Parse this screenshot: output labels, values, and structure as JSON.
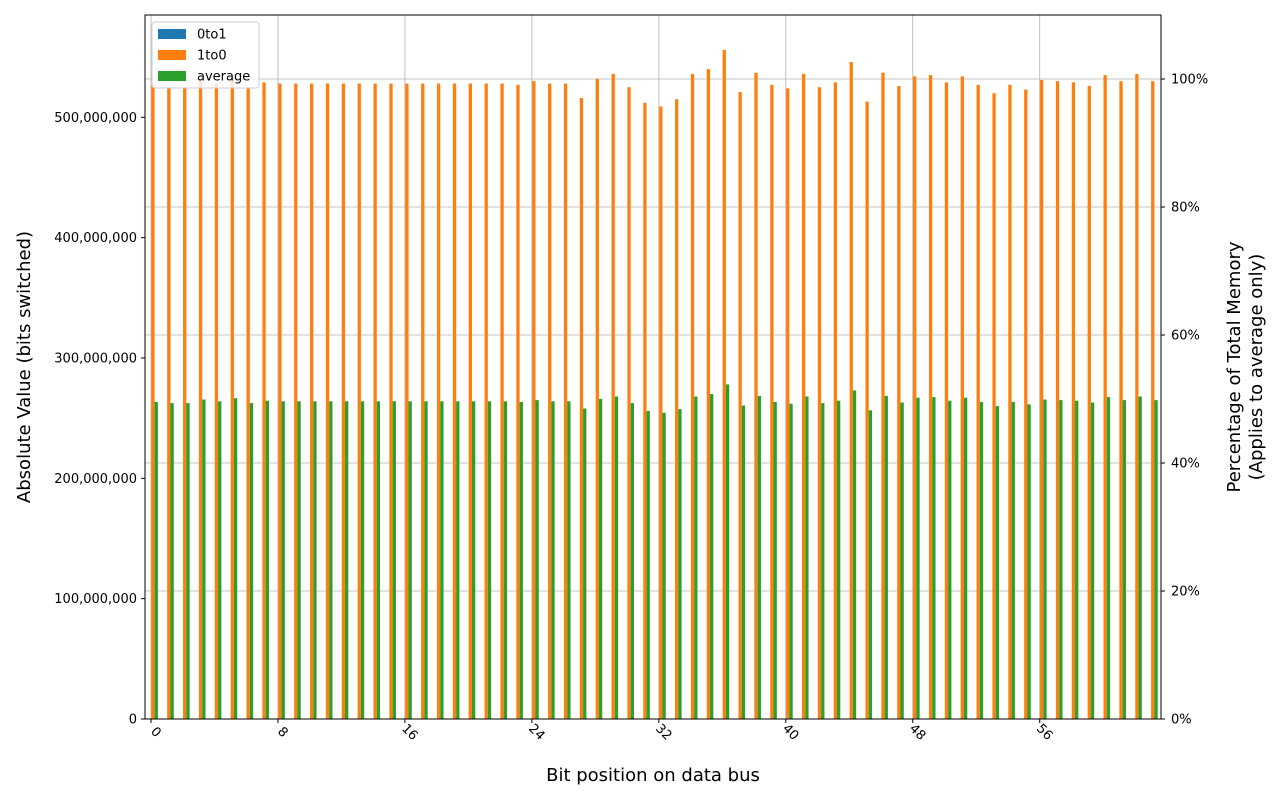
{
  "chart_data": {
    "type": "bar",
    "title": "",
    "xlabel": "Bit position on data bus",
    "ylabel": "Absolute Value (bits switched)",
    "y2label_line1": "Percentage of Total Memory",
    "y2label_line2": "(Applies to average only)",
    "ylim": [
      0,
      585000000
    ],
    "y2lim": [
      0,
      1.1
    ],
    "y2_full_scale_value": 529000000,
    "grid": true,
    "legend_position": "upper left",
    "x_ticks": [
      0,
      8,
      16,
      24,
      32,
      40,
      48,
      56
    ],
    "x_tick_labels": [
      "0",
      "8",
      "16",
      "24",
      "32",
      "40",
      "48",
      "56"
    ],
    "y_ticks": [
      0,
      100000000,
      200000000,
      300000000,
      400000000,
      500000000
    ],
    "y_tick_labels": [
      "0",
      "100,000,000",
      "200,000,000",
      "300,000,000",
      "400,000,000",
      "500,000,000"
    ],
    "y2_ticks": [
      0,
      0.2,
      0.4,
      0.6,
      0.8,
      1.0
    ],
    "y2_tick_labels": [
      "0%",
      "20%",
      "40%",
      "60%",
      "80%",
      "100%"
    ],
    "categories": [
      0,
      1,
      2,
      3,
      4,
      5,
      6,
      7,
      8,
      9,
      10,
      11,
      12,
      13,
      14,
      15,
      16,
      17,
      18,
      19,
      20,
      21,
      22,
      23,
      24,
      25,
      26,
      27,
      28,
      29,
      30,
      31,
      32,
      33,
      34,
      35,
      36,
      37,
      38,
      39,
      40,
      41,
      42,
      43,
      44,
      45,
      46,
      47,
      48,
      49,
      50,
      51,
      52,
      53,
      54,
      55,
      56,
      57,
      58,
      59,
      60,
      61,
      62,
      63
    ],
    "series": [
      {
        "name": "0to1",
        "color": "#1f77b4",
        "values": [
          0,
          0,
          0,
          0,
          0,
          0,
          0,
          0,
          0,
          0,
          0,
          0,
          0,
          0,
          0,
          0,
          0,
          0,
          0,
          0,
          0,
          0,
          0,
          0,
          0,
          0,
          0,
          0,
          0,
          0,
          0,
          0,
          0,
          0,
          0,
          0,
          0,
          0,
          0,
          0,
          0,
          0,
          0,
          0,
          0,
          0,
          0,
          0,
          0,
          0,
          0,
          0,
          0,
          0,
          0,
          0,
          0,
          0,
          0,
          0,
          0,
          0,
          0,
          0
        ]
      },
      {
        "name": "1to0",
        "color": "#ff7f0e",
        "values": [
          527000000,
          525000000,
          525000000,
          531000000,
          528000000,
          533000000,
          525000000,
          529000000,
          528000000,
          528000000,
          528000000,
          528000000,
          528000000,
          528000000,
          528000000,
          528000000,
          528000000,
          528000000,
          528000000,
          528000000,
          528000000,
          528000000,
          528000000,
          527000000,
          530000000,
          528000000,
          528000000,
          516000000,
          532000000,
          536000000,
          525000000,
          512000000,
          509000000,
          515000000,
          536000000,
          540000000,
          556000000,
          521000000,
          537000000,
          527000000,
          524000000,
          536000000,
          525000000,
          529000000,
          546000000,
          513000000,
          537000000,
          526000000,
          534000000,
          535000000,
          529000000,
          534000000,
          527000000,
          520000000,
          527000000,
          523000000,
          531000000,
          530000000,
          529000000,
          526000000,
          535000000,
          530000000,
          536000000,
          530000000
        ]
      },
      {
        "name": "average",
        "color": "#2ca02c",
        "values": [
          263500000,
          262500000,
          262500000,
          265500000,
          264000000,
          266500000,
          262500000,
          264500000,
          264000000,
          264000000,
          264000000,
          264000000,
          264000000,
          264000000,
          264000000,
          264000000,
          264000000,
          264000000,
          264000000,
          264000000,
          264000000,
          264000000,
          264000000,
          263500000,
          265000000,
          264000000,
          264000000,
          258000000,
          266000000,
          268000000,
          262500000,
          256000000,
          254500000,
          257500000,
          268000000,
          270000000,
          278000000,
          260500000,
          268500000,
          263500000,
          262000000,
          268000000,
          262500000,
          264500000,
          273000000,
          256500000,
          268500000,
          263000000,
          267000000,
          267500000,
          264500000,
          267000000,
          263500000,
          260000000,
          263500000,
          261500000,
          265500000,
          265000000,
          264500000,
          263000000,
          267500000,
          265000000,
          268000000,
          265000000
        ]
      }
    ]
  },
  "legend": {
    "items": [
      {
        "label": "0to1",
        "color": "#1f77b4"
      },
      {
        "label": "1to0",
        "color": "#ff7f0e"
      },
      {
        "label": "average",
        "color": "#2ca02c"
      }
    ]
  }
}
